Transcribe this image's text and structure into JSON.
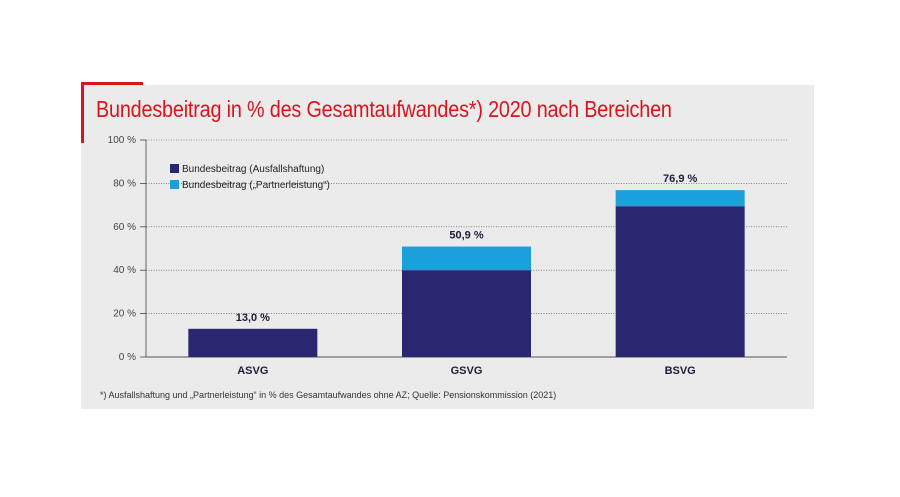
{
  "chart_data": {
    "type": "bar",
    "stacked": true,
    "title": "Bundesbeitrag in % des Gesamtaufwandes*) 2020 nach Bereichen",
    "categories": [
      "ASVG",
      "GSVG",
      "BSVG"
    ],
    "series": [
      {
        "name": "Bundesbeitrag (Ausfallshaftung)",
        "color": "#2b2670",
        "values": [
          13.0,
          40.0,
          69.5
        ]
      },
      {
        "name": "Bundesbeitrag („Partnerleistung“)",
        "color": "#1ba0dc",
        "values": [
          0.0,
          10.9,
          7.4
        ]
      }
    ],
    "data_labels": [
      "13,0 %",
      "50,9 %",
      "76,9 %"
    ],
    "totals": [
      13.0,
      50.9,
      76.9
    ],
    "yticks": [
      0,
      20,
      40,
      60,
      80,
      100
    ],
    "ytick_labels": [
      "0 %",
      "20 %",
      "40 %",
      "60 %",
      "80 %",
      "100 %"
    ],
    "ylim": [
      0,
      100
    ],
    "grid": true,
    "legend_position": "top-left",
    "footnote": "*) Ausfallshaftung und „Partnerleistung“ in % des Gesamtaufwandes ohne AZ; Quelle: Pensionskommission (2021)"
  },
  "colors": {
    "accent": "#d9141e",
    "panel": "#ebebeb"
  }
}
